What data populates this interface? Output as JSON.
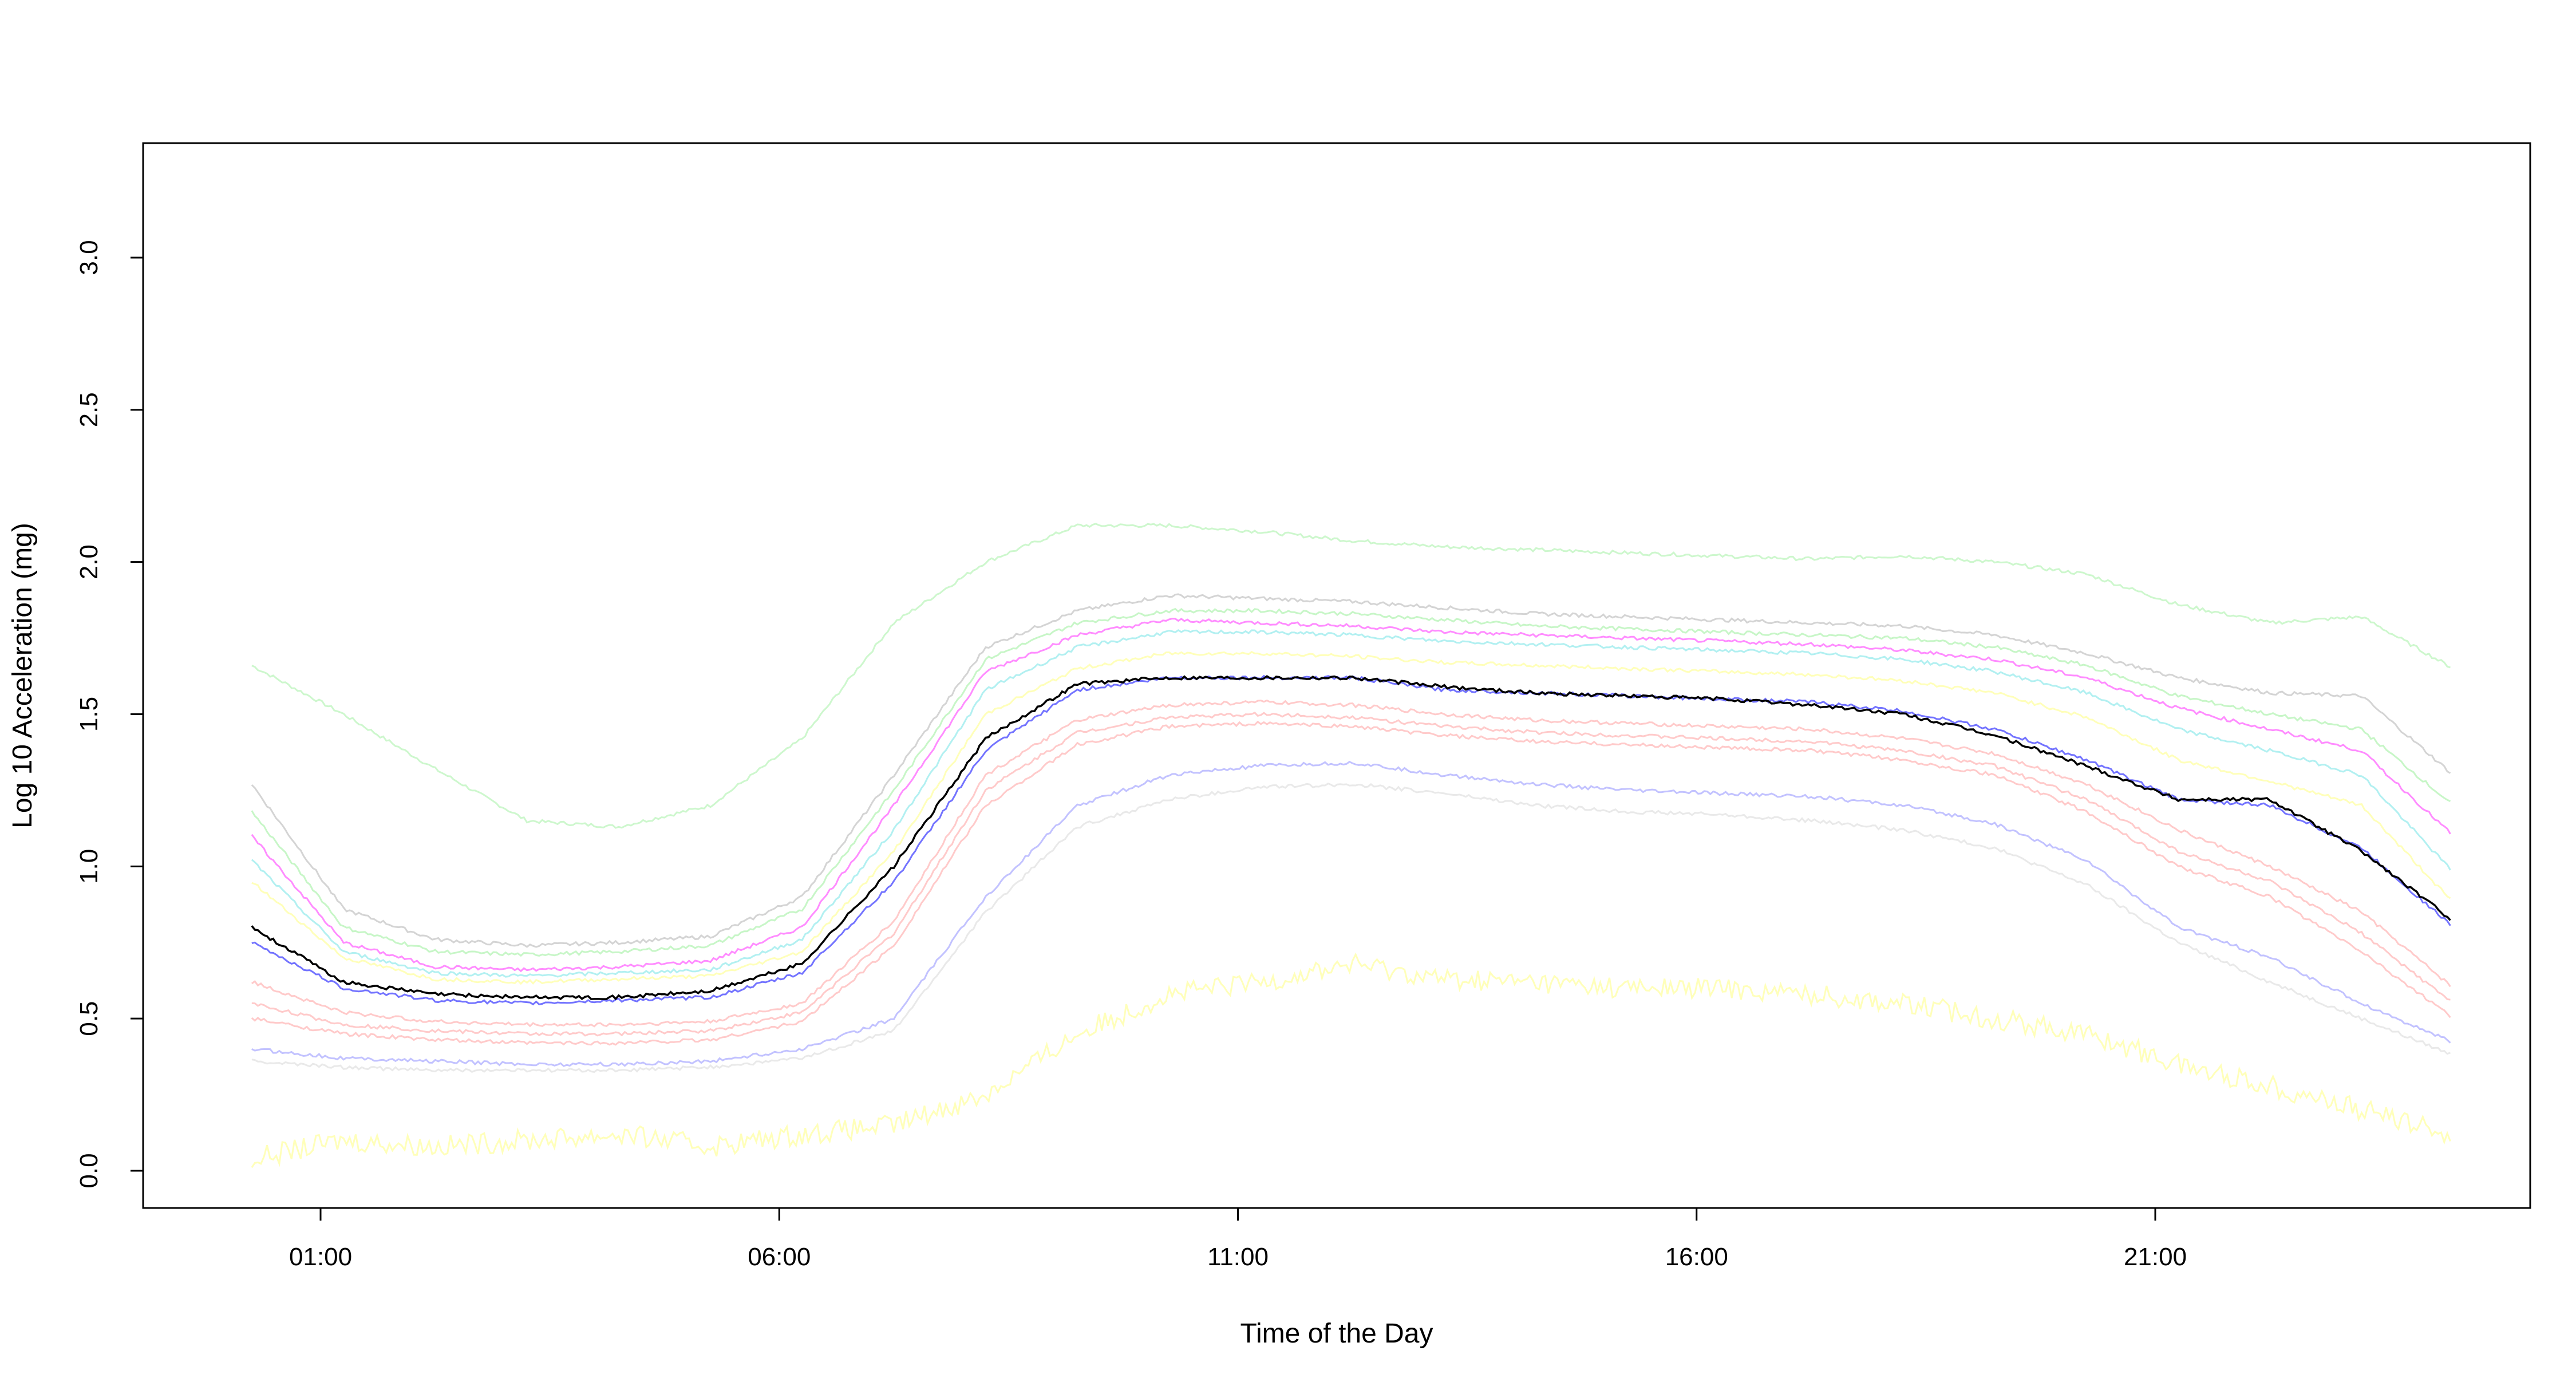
{
  "chart_data": {
    "type": "line",
    "title": "",
    "xlabel": "Time of the Day",
    "ylabel": "Log 10 Acceleration (mg)",
    "xlim": [
      0,
      24
    ],
    "ylim": [
      0,
      3.2
    ],
    "x_ticks": [
      {
        "value": 1,
        "label": "01:00"
      },
      {
        "value": 6,
        "label": "06:00"
      },
      {
        "value": 11,
        "label": "11:00"
      },
      {
        "value": 16,
        "label": "16:00"
      },
      {
        "value": 21,
        "label": "21:00"
      }
    ],
    "y_ticks": [
      {
        "value": 0,
        "label": "0.0"
      },
      {
        "value": 0.5,
        "label": "0.5"
      },
      {
        "value": 1,
        "label": "1.0"
      },
      {
        "value": 1.5,
        "label": "1.5"
      },
      {
        "value": 2,
        "label": "2.0"
      },
      {
        "value": 2.5,
        "label": "2.5"
      },
      {
        "value": 3,
        "label": "3.0"
      }
    ],
    "grid": false,
    "legend": "none",
    "x": [
      0,
      1,
      2,
      3,
      4,
      5,
      6,
      7,
      8,
      9,
      10,
      11,
      12,
      13,
      14,
      15,
      16,
      17,
      18,
      19,
      20,
      21,
      22,
      23,
      24
    ],
    "series": [
      {
        "color": "#90ee90",
        "opacity": 0.45,
        "values": [
          1.66,
          1.5,
          1.32,
          1.15,
          1.13,
          1.2,
          1.42,
          1.8,
          2.0,
          2.12,
          2.12,
          2.1,
          2.07,
          2.05,
          2.04,
          2.03,
          2.02,
          2.01,
          2.02,
          2.0,
          1.96,
          1.86,
          1.8,
          1.82,
          1.65
        ]
      },
      {
        "color": "#b0b0b0",
        "opacity": 0.55,
        "values": [
          1.27,
          0.86,
          0.76,
          0.74,
          0.75,
          0.77,
          0.9,
          1.3,
          1.72,
          1.84,
          1.89,
          1.88,
          1.87,
          1.85,
          1.83,
          1.82,
          1.81,
          1.8,
          1.79,
          1.76,
          1.7,
          1.62,
          1.57,
          1.56,
          1.3
        ]
      },
      {
        "color": "#90ee90",
        "opacity": 0.5,
        "values": [
          1.18,
          0.8,
          0.72,
          0.71,
          0.72,
          0.74,
          0.86,
          1.25,
          1.68,
          1.8,
          1.84,
          1.84,
          1.83,
          1.81,
          1.79,
          1.78,
          1.77,
          1.76,
          1.75,
          1.72,
          1.66,
          1.56,
          1.5,
          1.45,
          1.2
        ]
      },
      {
        "color": "#ff00ff",
        "opacity": 0.45,
        "values": [
          1.1,
          0.75,
          0.67,
          0.66,
          0.67,
          0.69,
          0.8,
          1.2,
          1.64,
          1.76,
          1.81,
          1.8,
          1.79,
          1.77,
          1.76,
          1.75,
          1.74,
          1.73,
          1.71,
          1.68,
          1.62,
          1.52,
          1.45,
          1.38,
          1.1
        ]
      },
      {
        "color": "#00ced1",
        "opacity": 0.3,
        "values": [
          1.02,
          0.72,
          0.65,
          0.64,
          0.65,
          0.66,
          0.76,
          1.12,
          1.58,
          1.72,
          1.77,
          1.77,
          1.76,
          1.74,
          1.73,
          1.72,
          1.71,
          1.7,
          1.68,
          1.64,
          1.57,
          1.45,
          1.38,
          1.3,
          0.98
        ]
      },
      {
        "color": "#ffff66",
        "opacity": 0.45,
        "values": [
          0.95,
          0.7,
          0.63,
          0.62,
          0.63,
          0.64,
          0.72,
          1.05,
          1.5,
          1.65,
          1.7,
          1.7,
          1.69,
          1.67,
          1.66,
          1.65,
          1.64,
          1.63,
          1.61,
          1.57,
          1.49,
          1.35,
          1.28,
          1.2,
          0.88
        ]
      },
      {
        "color": "#0000ff",
        "opacity": 0.55,
        "values": [
          0.75,
          0.6,
          0.56,
          0.55,
          0.56,
          0.57,
          0.65,
          0.95,
          1.38,
          1.58,
          1.62,
          1.62,
          1.62,
          1.58,
          1.57,
          1.56,
          1.55,
          1.54,
          1.51,
          1.45,
          1.35,
          1.22,
          1.2,
          1.06,
          0.8
        ]
      },
      {
        "color": "#ff6666",
        "opacity": 0.35,
        "values": [
          0.62,
          0.52,
          0.49,
          0.48,
          0.48,
          0.49,
          0.55,
          0.82,
          1.3,
          1.48,
          1.53,
          1.54,
          1.53,
          1.5,
          1.48,
          1.47,
          1.46,
          1.45,
          1.42,
          1.37,
          1.27,
          1.12,
          1.0,
          0.85,
          0.6
        ]
      },
      {
        "color": "#ff6666",
        "opacity": 0.35,
        "values": [
          0.55,
          0.48,
          0.46,
          0.45,
          0.45,
          0.46,
          0.52,
          0.78,
          1.25,
          1.44,
          1.49,
          1.5,
          1.49,
          1.46,
          1.44,
          1.43,
          1.42,
          1.41,
          1.38,
          1.33,
          1.22,
          1.05,
          0.95,
          0.78,
          0.55
        ]
      },
      {
        "color": "#ff6666",
        "opacity": 0.35,
        "values": [
          0.5,
          0.45,
          0.43,
          0.42,
          0.42,
          0.43,
          0.49,
          0.74,
          1.2,
          1.4,
          1.46,
          1.47,
          1.46,
          1.43,
          1.41,
          1.4,
          1.39,
          1.38,
          1.35,
          1.3,
          1.18,
          1.0,
          0.9,
          0.72,
          0.5
        ]
      },
      {
        "color": "#6666ff",
        "opacity": 0.4,
        "values": [
          0.4,
          0.37,
          0.36,
          0.35,
          0.35,
          0.36,
          0.4,
          0.5,
          0.9,
          1.2,
          1.3,
          1.33,
          1.34,
          1.3,
          1.27,
          1.25,
          1.24,
          1.23,
          1.2,
          1.14,
          1.02,
          0.8,
          0.7,
          0.55,
          0.42
        ]
      },
      {
        "color": "#c0c0c0",
        "opacity": 0.35,
        "values": [
          0.36,
          0.34,
          0.33,
          0.33,
          0.33,
          0.34,
          0.37,
          0.46,
          0.85,
          1.13,
          1.22,
          1.26,
          1.27,
          1.24,
          1.2,
          1.18,
          1.17,
          1.15,
          1.12,
          1.06,
          0.94,
          0.75,
          0.62,
          0.5,
          0.38
        ]
      },
      {
        "color": "#ffff66",
        "opacity": 0.45,
        "values": [
          0.04,
          0.1,
          0.08,
          0.1,
          0.12,
          0.08,
          0.12,
          0.15,
          0.25,
          0.45,
          0.58,
          0.62,
          0.68,
          0.63,
          0.62,
          0.6,
          0.6,
          0.58,
          0.55,
          0.5,
          0.45,
          0.35,
          0.28,
          0.2,
          0.12
        ]
      },
      {
        "color": "#000000",
        "opacity": 1.0,
        "width": 3.5,
        "values": [
          0.8,
          0.62,
          0.58,
          0.57,
          0.57,
          0.59,
          0.68,
          1.0,
          1.42,
          1.6,
          1.62,
          1.62,
          1.62,
          1.59,
          1.57,
          1.56,
          1.55,
          1.53,
          1.5,
          1.43,
          1.33,
          1.22,
          1.22,
          1.05,
          0.82
        ]
      }
    ]
  }
}
